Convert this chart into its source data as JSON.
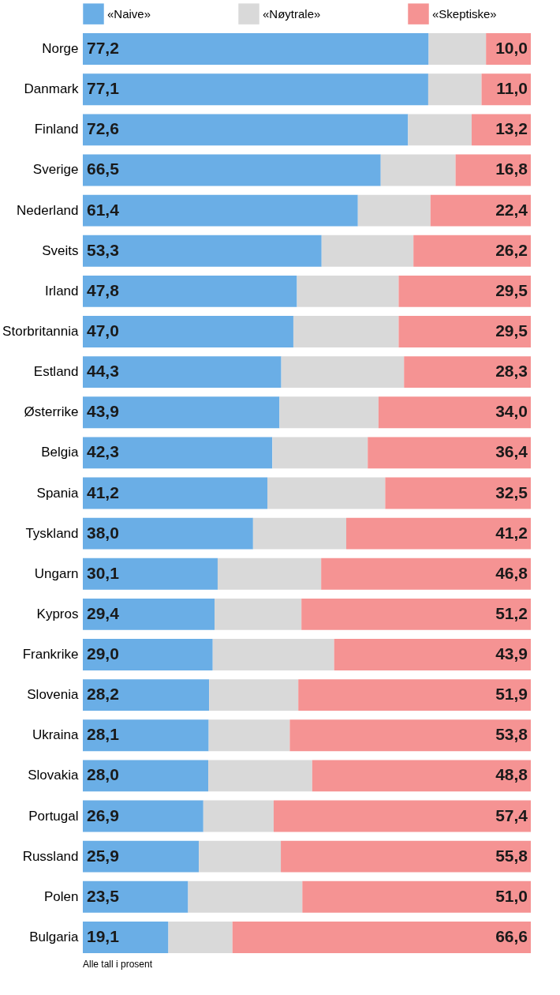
{
  "chart_data": {
    "type": "bar",
    "orientation": "horizontal",
    "stacked": true,
    "legend": "top",
    "tick_labels": "y",
    "xlim": [
      0,
      100
    ],
    "categories": [
      "Norge",
      "Danmark",
      "Finland",
      "Sverige",
      "Nederland",
      "Sveits",
      "Irland",
      "Storbritannia",
      "Estland",
      "Østerrike",
      "Belgia",
      "Spania",
      "Tyskland",
      "Ungarn",
      "Kypros",
      "Frankrike",
      "Slovenia",
      "Ukraina",
      "Slovakia",
      "Portugal",
      "Russland",
      "Polen",
      "Bulgaria"
    ],
    "series": [
      {
        "name": "«Naive»",
        "color": "#6aaee6",
        "values": [
          77.2,
          77.1,
          72.6,
          66.5,
          61.4,
          53.3,
          47.8,
          47.0,
          44.3,
          43.9,
          42.3,
          41.2,
          38.0,
          30.1,
          29.4,
          29.0,
          28.2,
          28.1,
          28.0,
          26.9,
          25.9,
          23.5,
          19.1
        ],
        "value_labels": [
          "77,2",
          "77,1",
          "72,6",
          "66,5",
          "61,4",
          "53,3",
          "47,8",
          "47,0",
          "44,3",
          "43,9",
          "42,3",
          "41,2",
          "38,0",
          "30,1",
          "29,4",
          "29,0",
          "28,2",
          "28,1",
          "28,0",
          "26,9",
          "25,9",
          "23,5",
          "19,1"
        ]
      },
      {
        "name": "«Nøytrale»",
        "color": "#d9d9d9",
        "values": [
          12.8,
          11.9,
          14.2,
          16.7,
          16.2,
          20.5,
          22.7,
          23.5,
          27.4,
          22.1,
          21.3,
          26.3,
          20.8,
          23.1,
          19.4,
          27.1,
          19.9,
          18.1,
          23.2,
          15.7,
          18.3,
          25.5,
          14.3
        ]
      },
      {
        "name": "«Skeptiske»",
        "color": "#f59393",
        "values": [
          10.0,
          11.0,
          13.2,
          16.8,
          22.4,
          26.2,
          29.5,
          29.5,
          28.3,
          34.0,
          36.4,
          32.5,
          41.2,
          46.8,
          51.2,
          43.9,
          51.9,
          53.8,
          48.8,
          57.4,
          55.8,
          51.0,
          66.6
        ],
        "value_labels": [
          "10,0",
          "11,0",
          "13,2",
          "16,8",
          "22,4",
          "26,2",
          "29,5",
          "29,5",
          "28,3",
          "34,0",
          "36,4",
          "32,5",
          "41,2",
          "46,8",
          "51,2",
          "43,9",
          "51,9",
          "53,8",
          "48,8",
          "57,4",
          "55,8",
          "51,0",
          "66,6"
        ]
      }
    ],
    "annotations": [
      "Alle tall i prosent"
    ]
  }
}
